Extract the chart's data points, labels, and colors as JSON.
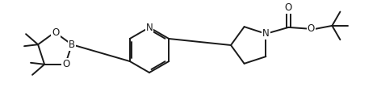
{
  "bg_color": "#ffffff",
  "line_color": "#1a1a1a",
  "line_width": 1.4,
  "font_size": 8.5,
  "figsize": [
    4.72,
    1.24
  ],
  "dpi": 100,
  "xlim": [
    0,
    472
  ],
  "ylim": [
    0,
    124
  ]
}
